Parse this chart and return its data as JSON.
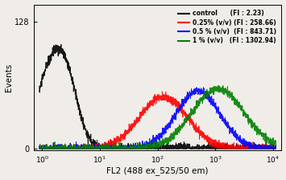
{
  "title": "",
  "xlabel": "FL2 (488 ex_525/50 em)",
  "ylabel": "Events",
  "yticks": [
    0,
    128
  ],
  "xlog_min": -0.1,
  "xlog_max": 4,
  "background_color": "#f0ede8",
  "legend_entries": [
    {
      "label": "control      (FI : 2.23)",
      "color": "black"
    },
    {
      "label": "0.25% (v/v) (FI : 258.66)",
      "color": "red"
    },
    {
      "label": "0.5 % (v/v)  (FI : 843.71)",
      "color": "blue"
    },
    {
      "label": "1 % (v/v)   (FI : 1302.94)",
      "color": "green"
    }
  ],
  "control_peak_log": 0.2,
  "control_peak_height": 88,
  "red_peak_log": 2.1,
  "red_peak_height": 52,
  "blue_peak_log": 2.7,
  "blue_peak_height": 58,
  "green_peak_log": 3.05,
  "green_peak_height": 60
}
